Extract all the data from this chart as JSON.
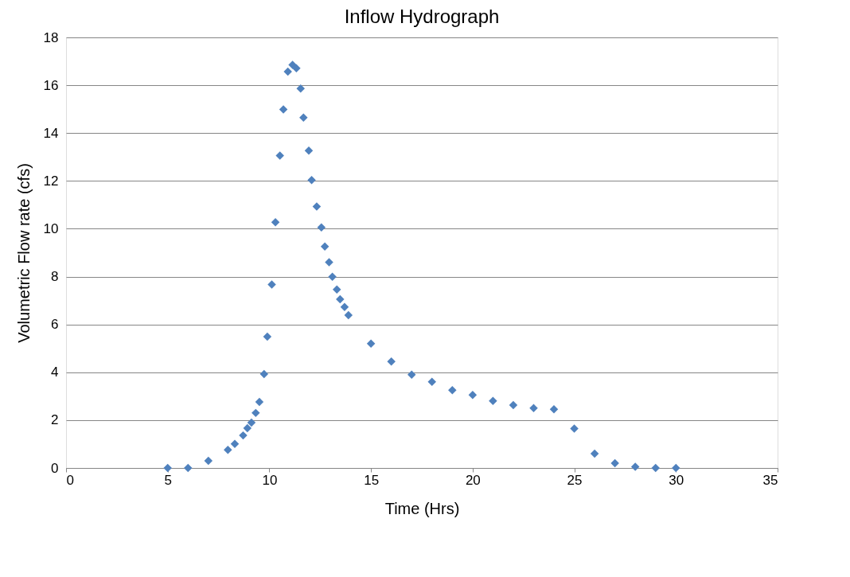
{
  "chart_data": {
    "type": "scatter",
    "title": "Inflow  Hydrograph",
    "xlabel": "Time  (Hrs)",
    "ylabel": "Volumetric  Flow rate  (cfs)",
    "x": [
      5,
      6,
      7,
      7.96,
      8.3,
      8.71,
      8.92,
      9.12,
      9.33,
      9.51,
      9.74,
      9.9,
      10.12,
      10.3,
      10.52,
      10.69,
      10.91,
      11.14,
      11.33,
      11.54,
      11.68,
      11.94,
      12.08,
      12.33,
      12.56,
      12.73,
      12.94,
      13.1,
      13.32,
      13.48,
      13.7,
      13.89,
      15,
      16,
      17,
      18,
      19,
      20,
      21,
      22,
      23,
      24,
      25,
      26,
      27,
      28,
      29,
      30
    ],
    "series": [
      {
        "color": "#4f81bd",
        "values": [
          0,
          0,
          0.3,
          0.76,
          1.01,
          1.36,
          1.66,
          1.9,
          2.3,
          2.76,
          3.93,
          5.49,
          7.67,
          10.27,
          13.06,
          14.99,
          16.57,
          16.85,
          16.71,
          15.86,
          14.65,
          13.27,
          12.04,
          10.93,
          10.06,
          9.26,
          8.6,
          7.99,
          7.46,
          7.05,
          6.73,
          6.39,
          5.2,
          4.45,
          3.9,
          3.6,
          3.25,
          3.05,
          2.8,
          2.63,
          2.5,
          2.45,
          1.65,
          0.6,
          0.2,
          0.05,
          0,
          0
        ]
      }
    ],
    "xlim": [
      0,
      35
    ],
    "xticks": [
      0,
      5,
      10,
      15,
      20,
      25,
      30,
      35
    ],
    "ylim": [
      0,
      18
    ],
    "yticks": [
      0,
      2,
      4,
      6,
      8,
      10,
      12,
      14,
      16,
      18
    ],
    "grid": "y",
    "marker": "diamond",
    "legend": false
  }
}
